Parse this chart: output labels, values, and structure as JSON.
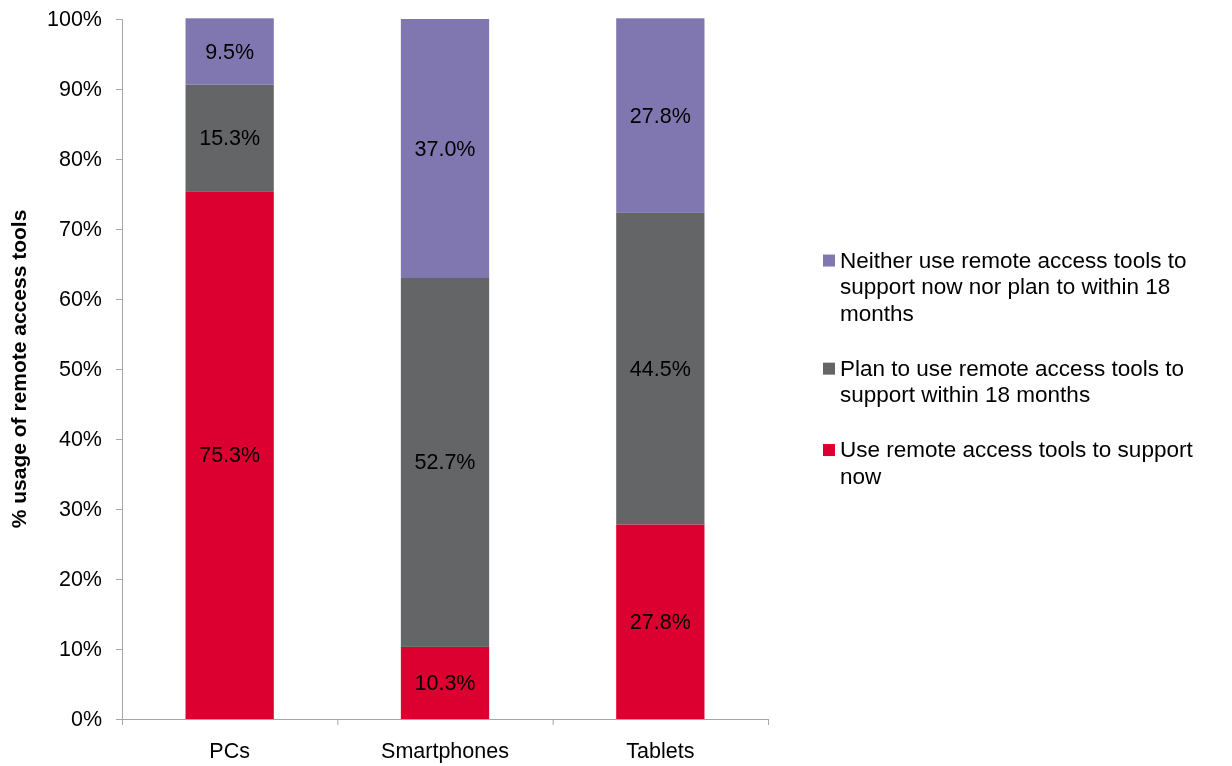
{
  "chart_data": {
    "type": "bar",
    "stacked": true,
    "ylabel": "% usage of remote access tools",
    "categories": [
      "PCs",
      "Smartphones",
      "Tablets"
    ],
    "series": [
      {
        "name": "Use remote access tools to support now",
        "color": "#dc0030",
        "values": [
          75.3,
          10.3,
          27.8
        ],
        "value_labels": [
          "75.3%",
          "10.3%",
          "27.8%"
        ]
      },
      {
        "name": "Plan to use remote access tools to support within 18 months",
        "color": "#646567",
        "values": [
          15.3,
          52.7,
          44.5
        ],
        "value_labels": [
          "15.3%",
          "52.7%",
          "44.5%"
        ]
      },
      {
        "name": "Neither use remote access tools to support now nor plan to within 18 months",
        "color": "#8077b0",
        "values": [
          9.5,
          37.0,
          27.8
        ],
        "value_labels": [
          "9.5%",
          "37.0%",
          "27.8%"
        ]
      }
    ],
    "ylim": [
      0,
      100
    ],
    "yticks": [
      {
        "value": 0,
        "label": "0%"
      },
      {
        "value": 10,
        "label": "10%"
      },
      {
        "value": 20,
        "label": "20%"
      },
      {
        "value": 30,
        "label": "30%"
      },
      {
        "value": 40,
        "label": "40%"
      },
      {
        "value": 50,
        "label": "50%"
      },
      {
        "value": 60,
        "label": "60%"
      },
      {
        "value": 70,
        "label": "70%"
      },
      {
        "value": 80,
        "label": "80%"
      },
      {
        "value": 90,
        "label": "90%"
      },
      {
        "value": 100,
        "label": "100%"
      }
    ],
    "legend": "right"
  }
}
